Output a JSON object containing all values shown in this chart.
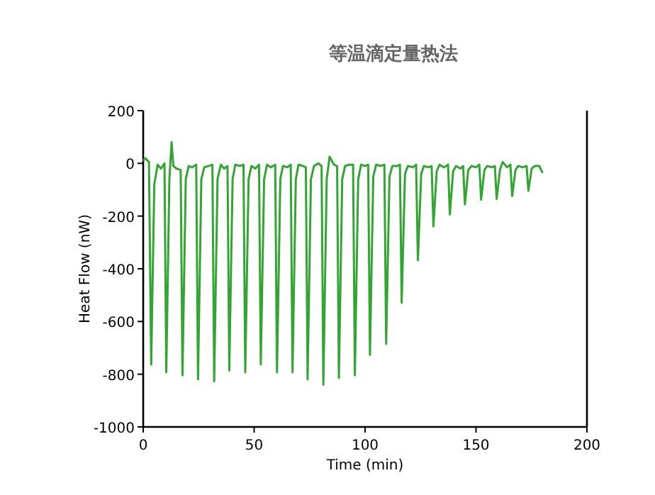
{
  "chart_data": {
    "type": "line",
    "title": "等温滴定量热法",
    "xlabel": "Time (min)",
    "ylabel": "Heat Flow (nW)",
    "xlim": [
      0,
      200
    ],
    "ylim": [
      -1000,
      200
    ],
    "xticks": [
      0,
      50,
      100,
      150,
      200
    ],
    "yticks": [
      -1000,
      -800,
      -600,
      -400,
      -200,
      0,
      200
    ],
    "x": [
      0,
      1,
      2.6,
      3.6,
      5,
      6.5,
      8,
      9.6,
      10.4,
      11.8,
      12.8,
      13.6,
      15,
      16.9,
      17.7,
      19.2,
      20.5,
      22,
      23.9,
      24.7,
      26.2,
      27.5,
      29.5,
      31.2,
      32,
      33.5,
      35,
      36.5,
      38,
      38.8,
      40.3,
      41.5,
      43.5,
      45.2,
      46,
      47.5,
      48.8,
      50.5,
      52.2,
      53,
      54.5,
      55.8,
      57.5,
      59.5,
      60.3,
      61.8,
      63,
      65,
      66.5,
      67.3,
      68.8,
      70,
      72,
      73.3,
      74.1,
      75.6,
      77,
      79,
      80.4,
      81.2,
      82.7,
      84,
      86,
      87.4,
      88.2,
      89.7,
      91,
      93,
      94.6,
      95.4,
      96.9,
      98.2,
      100,
      101.4,
      102.2,
      103.7,
      105,
      107,
      108.7,
      109.5,
      111,
      112.3,
      114.5,
      115.7,
      116.5,
      118,
      119.3,
      121.5,
      123,
      123.8,
      125.3,
      126.5,
      128.5,
      130,
      130.8,
      132.3,
      133.5,
      135.5,
      137.4,
      138.2,
      139.7,
      141,
      143,
      144.2,
      145,
      146.5,
      148,
      150,
      151.5,
      152.3,
      153.8,
      155,
      157,
      158.5,
      159.3,
      160.8,
      162,
      164,
      165.5,
      166.3,
      167.8,
      169,
      171,
      172.8,
      173.6,
      175.1,
      176.5,
      178.5,
      180
    ],
    "series": [
      {
        "color": "#33a532",
        "values": [
          10,
          20,
          5,
          -763,
          -80,
          -5,
          -20,
          0,
          -793,
          -60,
          80,
          -10,
          -20,
          -25,
          -804,
          -60,
          -10,
          -15,
          -5,
          -820,
          -60,
          -15,
          -10,
          -5,
          -827,
          -60,
          -5,
          -20,
          -10,
          -786,
          -60,
          -5,
          -10,
          -5,
          -793,
          -60,
          -10,
          -20,
          -5,
          -763,
          -60,
          -5,
          -15,
          -5,
          -793,
          -60,
          -10,
          -15,
          -5,
          -793,
          -60,
          -5,
          -10,
          -15,
          -820,
          -60,
          -10,
          0,
          -10,
          -840,
          -60,
          25,
          -5,
          -10,
          -814,
          -60,
          -10,
          -5,
          -5,
          -804,
          -60,
          -5,
          -10,
          -5,
          -727,
          -50,
          -5,
          -10,
          -5,
          -685,
          -50,
          -10,
          -10,
          -5,
          -529,
          -40,
          -10,
          -15,
          -5,
          -368,
          -40,
          -10,
          -15,
          -10,
          -239,
          -30,
          -5,
          -15,
          -5,
          -194,
          -30,
          -10,
          -20,
          -10,
          -156,
          -25,
          -10,
          -15,
          -5,
          -138,
          -25,
          -10,
          -15,
          -10,
          -135,
          -25,
          5,
          -15,
          -5,
          -124,
          -25,
          -10,
          -15,
          -10,
          -104,
          -20,
          -10,
          -10,
          -36
        ]
      }
    ]
  }
}
